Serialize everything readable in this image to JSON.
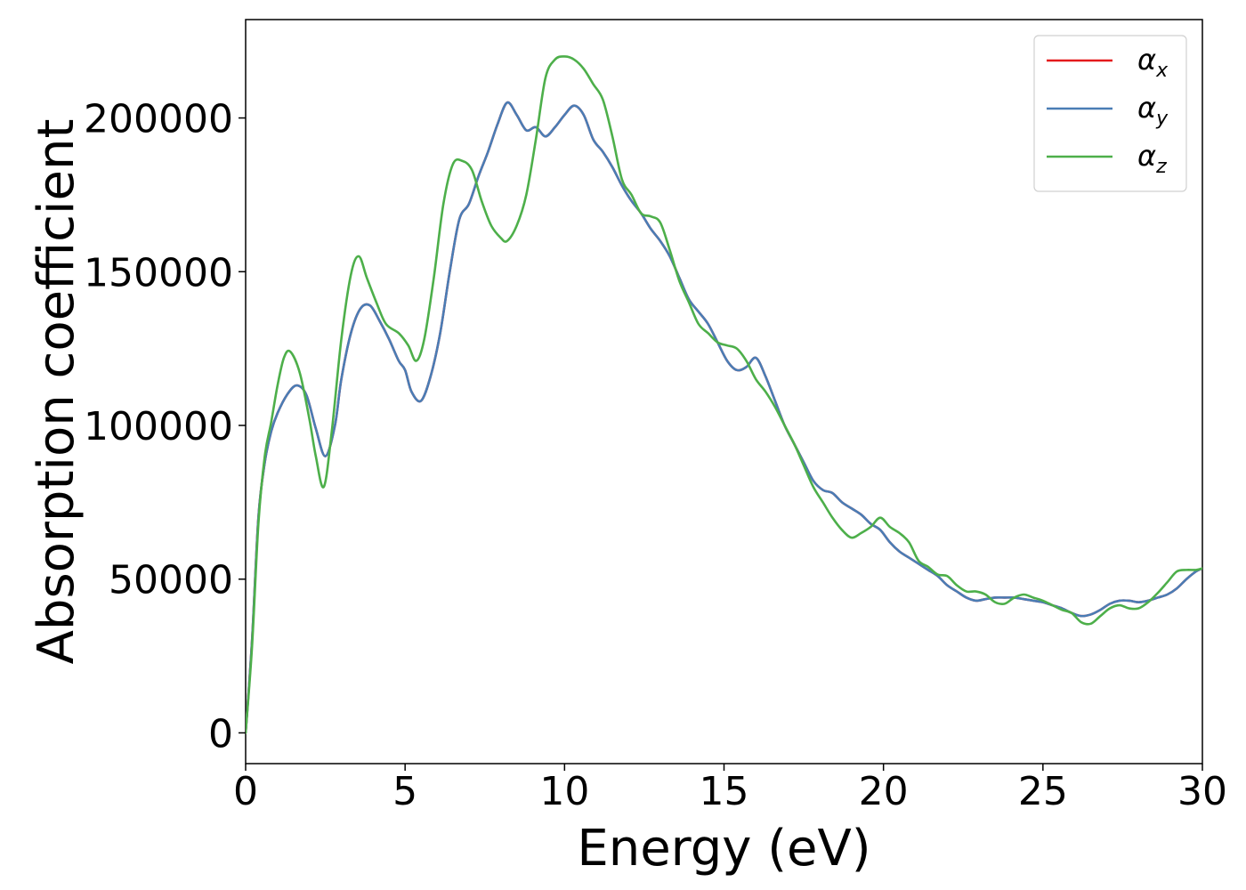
{
  "chart_data": {
    "type": "line",
    "xlabel": "Energy (eV)",
    "ylabel": "Absorption coefficient",
    "xlim": [
      0,
      30
    ],
    "ylim": [
      -10000,
      232000
    ],
    "xticks": [
      0,
      5,
      10,
      15,
      20,
      25,
      30
    ],
    "xtick_labels": [
      "0",
      "5",
      "10",
      "15",
      "20",
      "25",
      "30"
    ],
    "yticks": [
      0,
      50000,
      100000,
      150000,
      200000
    ],
    "ytick_labels": [
      "0",
      "50000",
      "100000",
      "150000",
      "200000"
    ],
    "grid": false,
    "legend_position": "top-right",
    "series": [
      {
        "name": "αx",
        "legend_main": "α",
        "legend_sub": "x",
        "color": "#e41a1c",
        "x": [
          0,
          0.2,
          0.4,
          0.6,
          0.8,
          1.0,
          1.3,
          1.6,
          1.9,
          2.2,
          2.5,
          2.8,
          3.0,
          3.3,
          3.6,
          3.9,
          4.2,
          4.5,
          4.8,
          5.0,
          5.2,
          5.5,
          5.8,
          6.1,
          6.4,
          6.7,
          7.0,
          7.3,
          7.6,
          7.9,
          8.2,
          8.5,
          8.8,
          9.1,
          9.4,
          9.7,
          10.0,
          10.3,
          10.6,
          10.9,
          11.2,
          11.5,
          11.8,
          12.1,
          12.4,
          12.7,
          13.0,
          13.3,
          13.6,
          13.9,
          14.2,
          14.5,
          14.8,
          15.1,
          15.4,
          15.7,
          16.0,
          16.3,
          16.6,
          16.9,
          17.2,
          17.5,
          17.8,
          18.1,
          18.4,
          18.7,
          19.0,
          19.3,
          19.6,
          19.9,
          20.2,
          20.5,
          20.8,
          21.1,
          21.4,
          21.7,
          22.0,
          22.3,
          22.6,
          22.9,
          23.2,
          23.5,
          23.8,
          24.1,
          24.4,
          24.7,
          25.0,
          25.3,
          25.6,
          25.9,
          26.2,
          26.5,
          26.8,
          27.1,
          27.4,
          27.7,
          28.0,
          28.3,
          28.6,
          28.9,
          29.2,
          29.5,
          29.8,
          30.0
        ],
        "y": [
          0,
          30000,
          70000,
          88000,
          98000,
          104000,
          110000,
          113000,
          110000,
          99000,
          90000,
          100000,
          115000,
          130000,
          138000,
          139000,
          134000,
          128000,
          121000,
          118000,
          111000,
          108000,
          116000,
          130000,
          150000,
          167000,
          172000,
          181000,
          189000,
          198000,
          205000,
          201000,
          196000,
          197000,
          194000,
          197000,
          201000,
          204000,
          201000,
          193000,
          189000,
          184000,
          178000,
          173000,
          169000,
          164000,
          160000,
          155000,
          148000,
          141000,
          137000,
          133000,
          127000,
          121000,
          118000,
          119000,
          122000,
          116000,
          108000,
          100000,
          94000,
          88000,
          82000,
          79000,
          78000,
          75000,
          73000,
          71000,
          68000,
          66000,
          62000,
          59000,
          57000,
          55000,
          53000,
          51000,
          48000,
          46000,
          44000,
          43000,
          43500,
          44000,
          44000,
          44000,
          43500,
          43000,
          42500,
          41500,
          40500,
          39000,
          38000,
          38500,
          40000,
          42000,
          43000,
          43000,
          42500,
          43000,
          44000,
          45000,
          47000,
          50000,
          52500,
          53500
        ]
      },
      {
        "name": "αy",
        "legend_main": "α",
        "legend_sub": "y",
        "color": "#4a7db5",
        "x": [
          0,
          0.2,
          0.4,
          0.6,
          0.8,
          1.0,
          1.3,
          1.6,
          1.9,
          2.2,
          2.5,
          2.8,
          3.0,
          3.3,
          3.6,
          3.9,
          4.2,
          4.5,
          4.8,
          5.0,
          5.2,
          5.5,
          5.8,
          6.1,
          6.4,
          6.7,
          7.0,
          7.3,
          7.6,
          7.9,
          8.2,
          8.5,
          8.8,
          9.1,
          9.4,
          9.7,
          10.0,
          10.3,
          10.6,
          10.9,
          11.2,
          11.5,
          11.8,
          12.1,
          12.4,
          12.7,
          13.0,
          13.3,
          13.6,
          13.9,
          14.2,
          14.5,
          14.8,
          15.1,
          15.4,
          15.7,
          16.0,
          16.3,
          16.6,
          16.9,
          17.2,
          17.5,
          17.8,
          18.1,
          18.4,
          18.7,
          19.0,
          19.3,
          19.6,
          19.9,
          20.2,
          20.5,
          20.8,
          21.1,
          21.4,
          21.7,
          22.0,
          22.3,
          22.6,
          22.9,
          23.2,
          23.5,
          23.8,
          24.1,
          24.4,
          24.7,
          25.0,
          25.3,
          25.6,
          25.9,
          26.2,
          26.5,
          26.8,
          27.1,
          27.4,
          27.7,
          28.0,
          28.3,
          28.6,
          28.9,
          29.2,
          29.5,
          29.8,
          30.0
        ],
        "y": [
          0,
          30000,
          70000,
          88000,
          98000,
          104000,
          110000,
          113000,
          110000,
          99000,
          90000,
          100000,
          115000,
          130000,
          138000,
          139000,
          134000,
          128000,
          121000,
          118000,
          111000,
          108000,
          116000,
          130000,
          150000,
          167000,
          172000,
          181000,
          189000,
          198000,
          205000,
          201000,
          196000,
          197000,
          194000,
          197000,
          201000,
          204000,
          201000,
          193000,
          189000,
          184000,
          178000,
          173000,
          169000,
          164000,
          160000,
          155000,
          148000,
          141000,
          137000,
          133000,
          127000,
          121000,
          118000,
          119000,
          122000,
          116000,
          108000,
          100000,
          94000,
          88000,
          82000,
          79000,
          78000,
          75000,
          73000,
          71000,
          68000,
          66000,
          62000,
          59000,
          57000,
          55000,
          53000,
          51000,
          48000,
          46000,
          44000,
          43000,
          43500,
          44000,
          44000,
          44000,
          43500,
          43000,
          42500,
          41500,
          40500,
          39000,
          38000,
          38500,
          40000,
          42000,
          43000,
          43000,
          42500,
          43000,
          44000,
          45000,
          47000,
          50000,
          52500,
          53500
        ]
      },
      {
        "name": "αz",
        "legend_main": "α",
        "legend_sub": "z",
        "color": "#4daf4a",
        "x": [
          0,
          0.2,
          0.4,
          0.6,
          0.8,
          1.0,
          1.2,
          1.4,
          1.7,
          2.0,
          2.2,
          2.45,
          2.7,
          3.0,
          3.3,
          3.55,
          3.8,
          4.1,
          4.4,
          4.8,
          5.1,
          5.35,
          5.6,
          5.9,
          6.2,
          6.5,
          6.8,
          7.1,
          7.4,
          7.7,
          8.0,
          8.2,
          8.5,
          8.8,
          9.1,
          9.4,
          9.7,
          10.0,
          10.3,
          10.6,
          10.9,
          11.2,
          11.5,
          11.8,
          12.1,
          12.4,
          12.7,
          13.0,
          13.3,
          13.6,
          13.9,
          14.2,
          14.5,
          14.8,
          15.1,
          15.4,
          15.7,
          16.0,
          16.3,
          16.6,
          16.9,
          17.2,
          17.5,
          17.8,
          18.1,
          18.4,
          18.7,
          19.0,
          19.3,
          19.6,
          19.9,
          20.2,
          20.5,
          20.8,
          21.1,
          21.4,
          21.7,
          22.0,
          22.3,
          22.6,
          22.9,
          23.2,
          23.5,
          23.8,
          24.1,
          24.4,
          24.7,
          25.0,
          25.3,
          25.6,
          25.9,
          26.2,
          26.5,
          26.8,
          27.1,
          27.4,
          27.7,
          28.0,
          28.3,
          28.6,
          28.9,
          29.2,
          29.5,
          29.8,
          30.0
        ],
        "y": [
          0,
          28000,
          68000,
          90000,
          101000,
          113000,
          122000,
          124000,
          117000,
          102000,
          90000,
          80000,
          98000,
          128000,
          149000,
          155000,
          148000,
          140000,
          133000,
          130000,
          126000,
          121000,
          128000,
          148000,
          172000,
          185000,
          186000,
          183000,
          173000,
          165000,
          161000,
          160000,
          165000,
          175000,
          193000,
          213000,
          219000,
          220000,
          219000,
          216000,
          211000,
          206000,
          194000,
          180000,
          175000,
          169000,
          168000,
          166000,
          157000,
          147000,
          140000,
          133000,
          130000,
          127000,
          126000,
          125000,
          121000,
          115000,
          111000,
          106000,
          100000,
          94000,
          87000,
          80000,
          75000,
          70000,
          66000,
          63500,
          65000,
          67000,
          70000,
          67000,
          65000,
          62000,
          56000,
          54000,
          51500,
          51000,
          48000,
          46000,
          46000,
          45000,
          42500,
          42000,
          44000,
          45000,
          44000,
          43000,
          41500,
          40000,
          39000,
          36000,
          35500,
          38000,
          40500,
          41500,
          40500,
          40500,
          42500,
          45500,
          49000,
          52500,
          53000,
          53000,
          53500
        ]
      }
    ]
  }
}
